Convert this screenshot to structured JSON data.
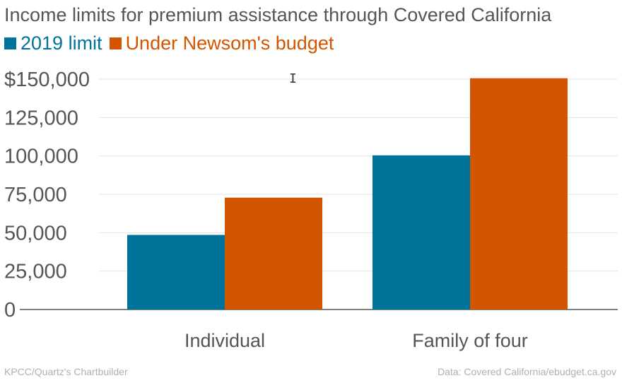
{
  "colors": {
    "series_2019": "#00739a",
    "series_newsom": "#d45500",
    "text_dark": "#555555",
    "text_light": "#b0b0b0",
    "grid": "#e3e3e3",
    "axis": "#555555"
  },
  "legend": {
    "item1": "2019 limit",
    "item2": "Under Newsom's budget"
  },
  "footer": {
    "left": "KPCC/Quartz's Chartbuilder",
    "right": "Data: Covered California/ebudget.ca.gov"
  },
  "cursor_icon": "text-cursor-icon",
  "chart_data": {
    "type": "bar",
    "title": "Income limits for premium assistance through Covered California",
    "xlabel": "",
    "ylabel": "",
    "categories": [
      "Individual",
      "Family of four"
    ],
    "series": [
      {
        "name": "2019 limit",
        "color": "#00739a",
        "values": [
          48560,
          100400
        ]
      },
      {
        "name": "Under Newsom's budget",
        "color": "#d45500",
        "values": [
          72840,
          150600
        ]
      }
    ],
    "ylim": [
      0,
      150000
    ],
    "yticks": [
      0,
      25000,
      50000,
      75000,
      100000,
      125000,
      150000
    ],
    "ytick_labels": [
      "0",
      "25,000",
      "50,000",
      "75,000",
      "100,000",
      "125,000",
      "$150,000"
    ],
    "grid": true,
    "legend_position": "top-left"
  }
}
